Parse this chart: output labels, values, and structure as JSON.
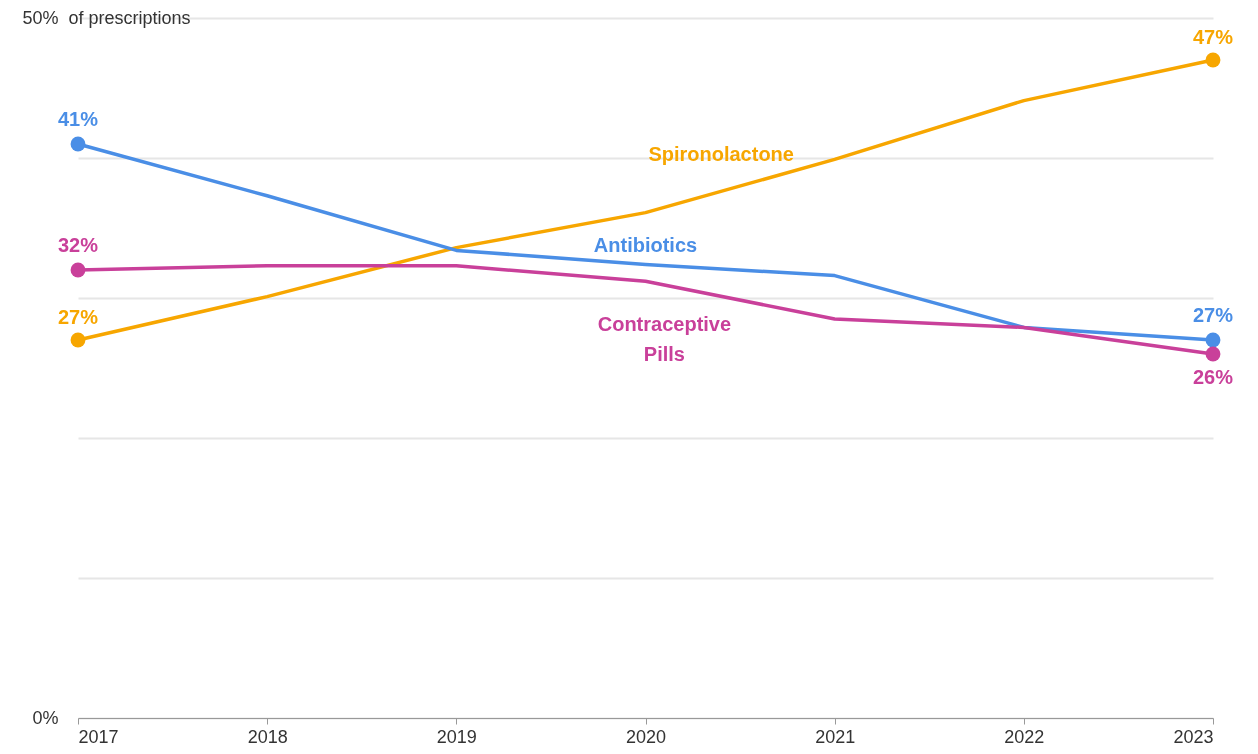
{
  "chart_data": {
    "type": "line",
    "ylabel": "of prescriptions",
    "x": [
      2017,
      2018,
      2019,
      2020,
      2021,
      2022,
      2023
    ],
    "xlim": [
      2017,
      2023
    ],
    "xticks": [
      2017,
      2018,
      2019,
      2020,
      2021,
      2022,
      2023
    ],
    "ylim": [
      0,
      50
    ],
    "yticks": [
      {
        "value": 0,
        "label": "0%"
      },
      {
        "value": 10,
        "label": null
      },
      {
        "value": 20,
        "label": null
      },
      {
        "value": 30,
        "label": null
      },
      {
        "value": 40,
        "label": null
      },
      {
        "value": 50,
        "label": "50%"
      }
    ],
    "grid": "y",
    "line_style": "solid",
    "series": [
      {
        "name": "Spironolactone",
        "color": "#f7a600",
        "values": [
          27,
          30.1,
          33.6,
          36.1,
          39.9,
          44.1,
          47
        ],
        "value_labels": [
          "27%",
          null,
          null,
          null,
          null,
          null,
          "47%"
        ]
      },
      {
        "name": "Antibiotics",
        "color": "#4a8ee6",
        "values": [
          41,
          37.3,
          33.4,
          32.4,
          31.6,
          27.9,
          27
        ],
        "value_labels": [
          "41%",
          null,
          null,
          null,
          null,
          null,
          "27%"
        ]
      },
      {
        "name": "Contraceptive Pills",
        "color": "#c9409a",
        "values": [
          32,
          32.3,
          32.3,
          31.2,
          28.5,
          27.9,
          26
        ],
        "value_labels": [
          "32%",
          null,
          null,
          null,
          null,
          null,
          "26%"
        ]
      }
    ]
  }
}
